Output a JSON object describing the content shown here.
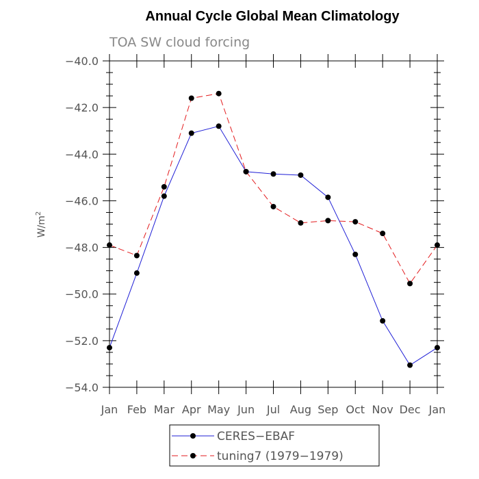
{
  "chart_data": {
    "type": "line",
    "title": "Annual Cycle Global Mean Climatology",
    "subtitle": "TOA SW cloud forcing",
    "ylabel_base": "W/m",
    "ylabel_sup": "2",
    "categories": [
      "Jan",
      "Feb",
      "Mar",
      "Apr",
      "May",
      "Jun",
      "Jul",
      "Aug",
      "Sep",
      "Oct",
      "Nov",
      "Dec",
      "Jan"
    ],
    "ylim": [
      -54.0,
      -40.0
    ],
    "yticks": [
      -54.0,
      -52.0,
      -50.0,
      -48.0,
      -46.0,
      -44.0,
      -42.0,
      -40.0
    ],
    "ytick_labels": [
      "−54.0",
      "−52.0",
      "−50.0",
      "−48.0",
      "−46.0",
      "−44.0",
      "−42.0",
      "−40.0"
    ],
    "grid": false,
    "legend_placement": "bottom",
    "series": [
      {
        "name": "CERES−EBAF",
        "color": "#1f1fd6",
        "dash": "solid",
        "values": [
          -52.3,
          -49.1,
          -45.8,
          -43.1,
          -42.8,
          -44.75,
          -44.85,
          -44.9,
          -45.85,
          -48.3,
          -51.15,
          -53.05,
          -52.3
        ]
      },
      {
        "name": "tuning7 (1979−1979)",
        "color": "#e31a1c",
        "dash": "dashed",
        "values": [
          -47.9,
          -48.35,
          -45.4,
          -41.6,
          -41.4,
          -44.75,
          -46.25,
          -46.95,
          -46.85,
          -46.9,
          -47.4,
          -49.55,
          -47.9
        ]
      }
    ]
  }
}
